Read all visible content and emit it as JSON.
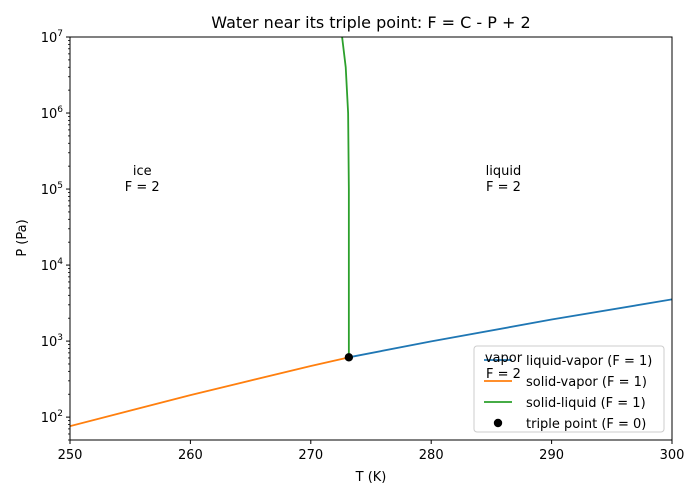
{
  "chart_data": {
    "type": "line",
    "title": "Water near its triple point: F = C - P + 2",
    "xlabel": "T (K)",
    "ylabel": "P (Pa)",
    "xlim": [
      250,
      300
    ],
    "ylim": [
      50,
      10000000
    ],
    "yscale": "log",
    "x_ticks": [
      250,
      260,
      270,
      280,
      290,
      300
    ],
    "y_ticks": [
      {
        "value": 100,
        "mantissa": "10",
        "exp": "2"
      },
      {
        "value": 1000,
        "mantissa": "10",
        "exp": "3"
      },
      {
        "value": 10000,
        "mantissa": "10",
        "exp": "4"
      },
      {
        "value": 100000,
        "mantissa": "10",
        "exp": "5"
      },
      {
        "value": 1000000,
        "mantissa": "10",
        "exp": "6"
      },
      {
        "value": 10000000,
        "mantissa": "10",
        "exp": "7"
      }
    ],
    "series": [
      {
        "name": "liquid-vapor (F = 1)",
        "color": "#1f77b4",
        "style": "line",
        "points": [
          [
            273.16,
            611.657
          ],
          [
            280,
            991
          ],
          [
            290,
            1920
          ],
          [
            300,
            3536
          ]
        ]
      },
      {
        "name": "solid-vapor (F = 1)",
        "color": "#ff7f0e",
        "style": "line",
        "points": [
          [
            250,
            76
          ],
          [
            260,
            195
          ],
          [
            270,
            470
          ],
          [
            273.16,
            611.657
          ]
        ]
      },
      {
        "name": "solid-liquid (F = 1)",
        "color": "#2ca02c",
        "style": "line",
        "points": [
          [
            273.16,
            611.657
          ],
          [
            273.16,
            100000
          ],
          [
            273.1,
            1000000
          ],
          [
            273.0,
            2000000
          ],
          [
            272.9,
            4000000
          ],
          [
            272.6,
            10000000
          ]
        ]
      },
      {
        "name": "triple point (F = 0)",
        "color": "#000000",
        "style": "marker",
        "points": [
          [
            273.16,
            611.657
          ]
        ]
      }
    ],
    "annotations": [
      {
        "lines": [
          "ice",
          "F = 2"
        ],
        "x": 256,
        "y": 100000
      },
      {
        "lines": [
          "liquid",
          "F = 2"
        ],
        "x": 286,
        "y": 100000
      },
      {
        "lines": [
          "vapor",
          "F = 2"
        ],
        "x": 286,
        "y": 350
      }
    ],
    "legend_position": "lower-right",
    "grid": false
  }
}
